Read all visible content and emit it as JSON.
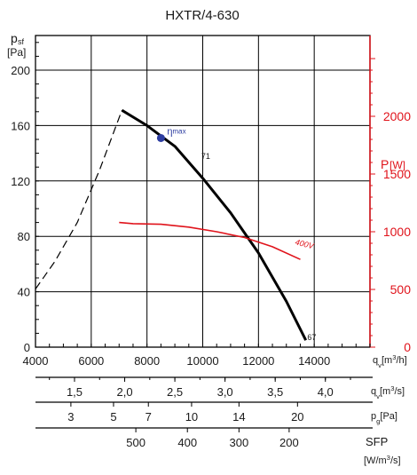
{
  "chart_data": {
    "type": "line",
    "title": "HXTR/4-630",
    "y_label": {
      "main": "p",
      "sub": "sf",
      "unit": "[Pa]"
    },
    "y2_label": {
      "main": "P",
      "unit": "[W]"
    },
    "xlim": [
      4000,
      16000
    ],
    "ylim": [
      0,
      225
    ],
    "y2lim": [
      0,
      2700
    ],
    "x_ticks": [
      4000,
      6000,
      8000,
      10000,
      12000,
      14000
    ],
    "y_ticks": [
      0,
      40,
      80,
      120,
      160,
      200
    ],
    "y2_ticks": [
      0,
      500,
      1000,
      1500,
      2000
    ],
    "x_unit": {
      "pre": "q",
      "sub": "v",
      "mid": "[m",
      "sup": "3",
      "post": "/h]"
    },
    "series": [
      {
        "role": "pressure",
        "color": "#000000",
        "x": [
          7100,
          8000,
          9000,
          10000,
          11000,
          12000,
          13000,
          13700
        ],
        "y": [
          171,
          160,
          145,
          122,
          97,
          68,
          33,
          5
        ]
      },
      {
        "role": "stall",
        "color": "#000000",
        "dashed": true,
        "x": [
          4000,
          4700,
          5500,
          6300,
          7100
        ],
        "y": [
          42,
          62,
          90,
          128,
          171
        ]
      },
      {
        "name": "400V",
        "role": "power",
        "color": "#e0131b",
        "x": [
          7000,
          7500,
          8500,
          9500,
          10500,
          11500,
          12500,
          13500
        ],
        "y": [
          1080,
          1070,
          1065,
          1040,
          1000,
          950,
          870,
          760
        ]
      }
    ],
    "annotations": {
      "eta_label": "η",
      "eta_sub": "max",
      "eta_point": {
        "x": 8500,
        "y": 151
      },
      "efficiency_label": "71",
      "efficiency_pos": {
        "x": 9950,
        "y": 136
      },
      "end_label": "67",
      "end_pos": {
        "x": 13750,
        "y": 5
      },
      "power_label": "400V",
      "power_label_pos": {
        "x": 13300,
        "y": 890
      }
    },
    "scales": [
      {
        "unit": {
          "pre": "q",
          "sub": "v",
          "mid": "[m",
          "sup": "3",
          "post": "/s]"
        },
        "ticks": [
          {
            "x": 5400,
            "label": "1,5"
          },
          {
            "x": 7200,
            "label": "2,0"
          },
          {
            "x": 9000,
            "label": "2,5"
          },
          {
            "x": 10800,
            "label": "3,0"
          },
          {
            "x": 12600,
            "label": "3,5"
          },
          {
            "x": 14400,
            "label": "4,0"
          }
        ]
      },
      {
        "unit": {
          "pre": "p",
          "sub": "g",
          "post": "[Pa]"
        },
        "ticks": [
          {
            "x": 5270,
            "label": "3"
          },
          {
            "x": 6800,
            "label": "5"
          },
          {
            "x": 8050,
            "label": "7"
          },
          {
            "x": 9600,
            "label": "10"
          },
          {
            "x": 11300,
            "label": "14"
          },
          {
            "x": 13400,
            "label": "20"
          }
        ]
      },
      {
        "unit": {
          "pre": "SFP",
          "line2": "[W/m",
          "sup": "3",
          "post": "/s]"
        },
        "ticks": [
          {
            "x": 7600,
            "label": "500"
          },
          {
            "x": 9450,
            "label": "400"
          },
          {
            "x": 11300,
            "label": "300"
          },
          {
            "x": 13100,
            "label": "200"
          }
        ]
      }
    ]
  }
}
